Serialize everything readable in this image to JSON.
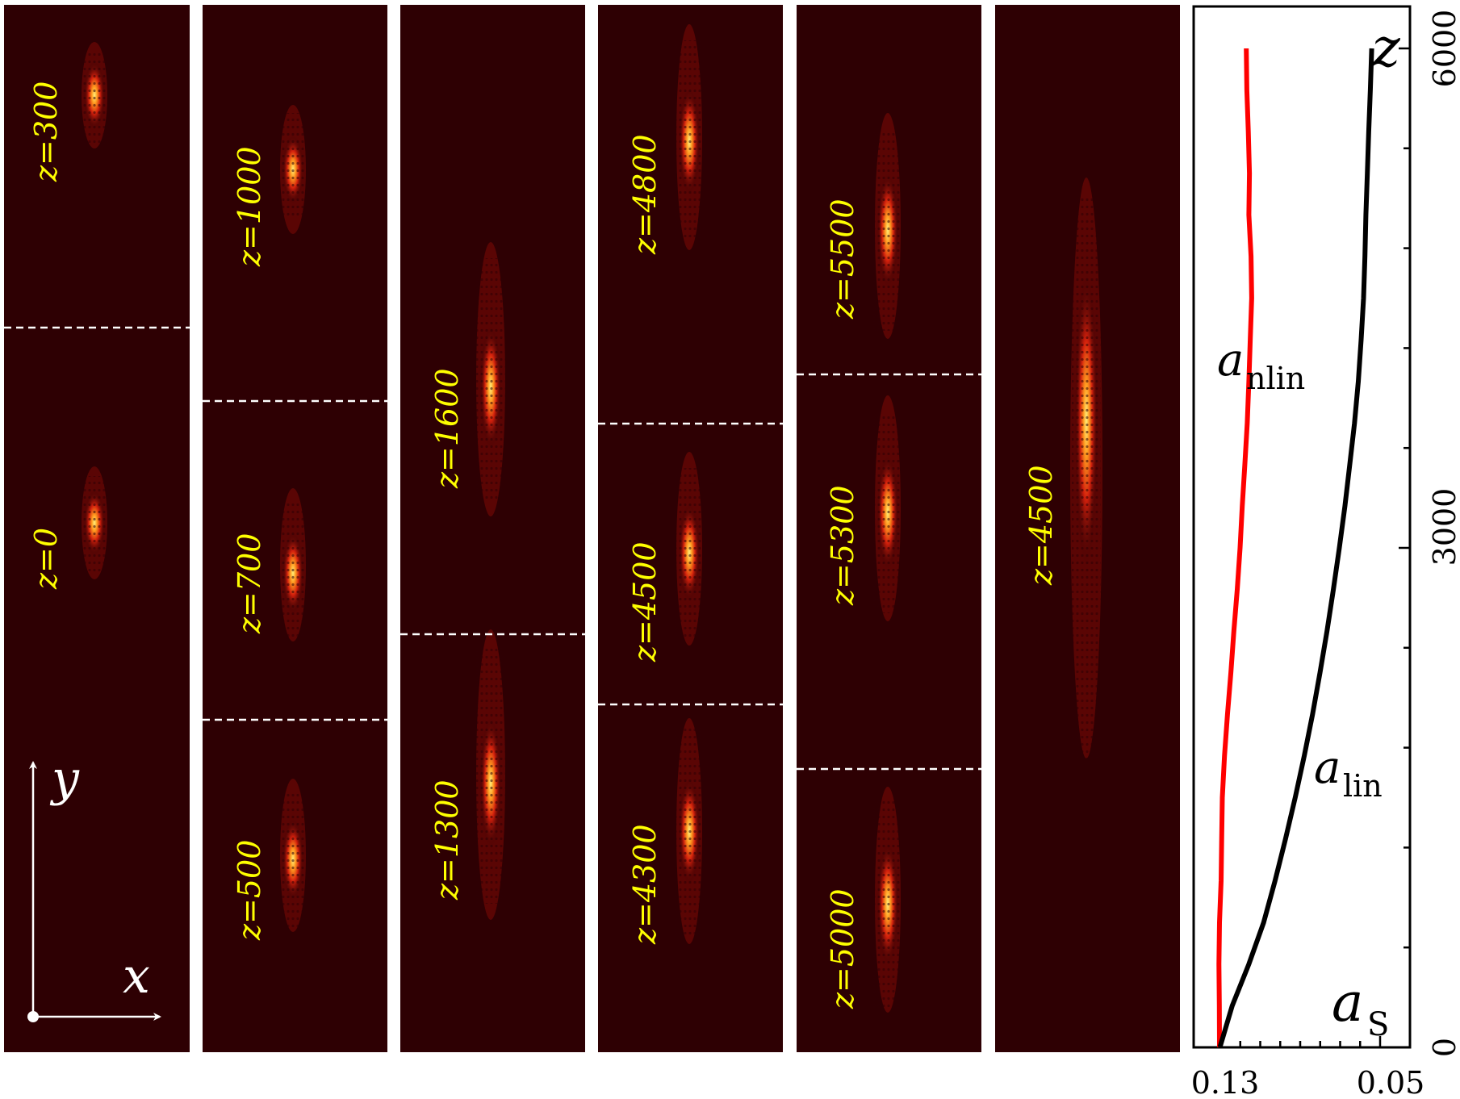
{
  "colors": {
    "panel_bg": "#2e0003",
    "beam_glow": "#8a0a06",
    "beam_core": "#ffe96a",
    "label_text": "#ffff00",
    "separator": "#ffffff",
    "nlin_curve": "#ff0000",
    "lin_curve": "#000000"
  },
  "panels": [
    {
      "column": 1,
      "snapshots": [
        "z=300",
        "z=0"
      ]
    },
    {
      "column": 2,
      "snapshots": [
        "z=1000",
        "z=700",
        "z=500"
      ]
    },
    {
      "column": 3,
      "snapshots": [
        "z=1600",
        "z=1300"
      ]
    },
    {
      "column": 4,
      "snapshots": [
        "z=4800",
        "z=4500",
        "z=4300"
      ]
    },
    {
      "column": 5,
      "snapshots": [
        "z=5500",
        "z=5300",
        "z=5000"
      ]
    },
    {
      "column": 6,
      "snapshots": [
        "z=4500"
      ]
    }
  ],
  "axes_arrows": {
    "x_label": "x",
    "y_label": "y"
  },
  "chart_data": {
    "type": "line",
    "orientation": "vertical (z on vertical axis, a_s on horizontal axis)",
    "xlabel": "a_s",
    "ylabel": "z",
    "xlim": [
      0.13,
      0.05
    ],
    "ylim": [
      0,
      6000
    ],
    "x_tick_labels": [
      "0.13",
      "0.05"
    ],
    "y_tick_labels": [
      "0",
      "3000",
      "6000"
    ],
    "series": [
      {
        "name": "a_nlin",
        "color": "#ff0000",
        "points": [
          [
            0.1304,
            0
          ],
          [
            0.1305,
            250
          ],
          [
            0.1307,
            500
          ],
          [
            0.1304,
            750
          ],
          [
            0.1296,
            1000
          ],
          [
            0.1293,
            1250
          ],
          [
            0.129,
            1500
          ],
          [
            0.1279,
            1750
          ],
          [
            0.1264,
            2000
          ],
          [
            0.1247,
            2250
          ],
          [
            0.1232,
            2500
          ],
          [
            0.1215,
            2750
          ],
          [
            0.1201,
            3000
          ],
          [
            0.119,
            3250
          ],
          [
            0.1177,
            3500
          ],
          [
            0.1165,
            3750
          ],
          [
            0.1157,
            4000
          ],
          [
            0.115,
            4250
          ],
          [
            0.1143,
            4500
          ],
          [
            0.1146,
            4750
          ],
          [
            0.1157,
            5000
          ],
          [
            0.1154,
            5250
          ],
          [
            0.116,
            5500
          ],
          [
            0.1167,
            5750
          ],
          [
            0.117,
            6000
          ]
        ]
      },
      {
        "name": "a_lin",
        "color": "#000000",
        "points": [
          [
            0.1302,
            0
          ],
          [
            0.124,
            250
          ],
          [
            0.1157,
            500
          ],
          [
            0.1083,
            750
          ],
          [
            0.1026,
            1000
          ],
          [
            0.0974,
            1250
          ],
          [
            0.0925,
            1500
          ],
          [
            0.088,
            1750
          ],
          [
            0.0838,
            2000
          ],
          [
            0.0801,
            2250
          ],
          [
            0.0766,
            2500
          ],
          [
            0.0734,
            2750
          ],
          [
            0.0704,
            3000
          ],
          [
            0.0676,
            3250
          ],
          [
            0.0652,
            3500
          ],
          [
            0.0628,
            3750
          ],
          [
            0.0609,
            4000
          ],
          [
            0.0595,
            4250
          ],
          [
            0.0583,
            4500
          ],
          [
            0.0576,
            4750
          ],
          [
            0.0571,
            5000
          ],
          [
            0.0564,
            5250
          ],
          [
            0.0557,
            5500
          ],
          [
            0.0549,
            5750
          ],
          [
            0.0542,
            6000
          ]
        ]
      }
    ],
    "labels": {
      "nlin": "a_nlin",
      "lin": "a_lin",
      "as": "a_s",
      "z": "z"
    }
  }
}
